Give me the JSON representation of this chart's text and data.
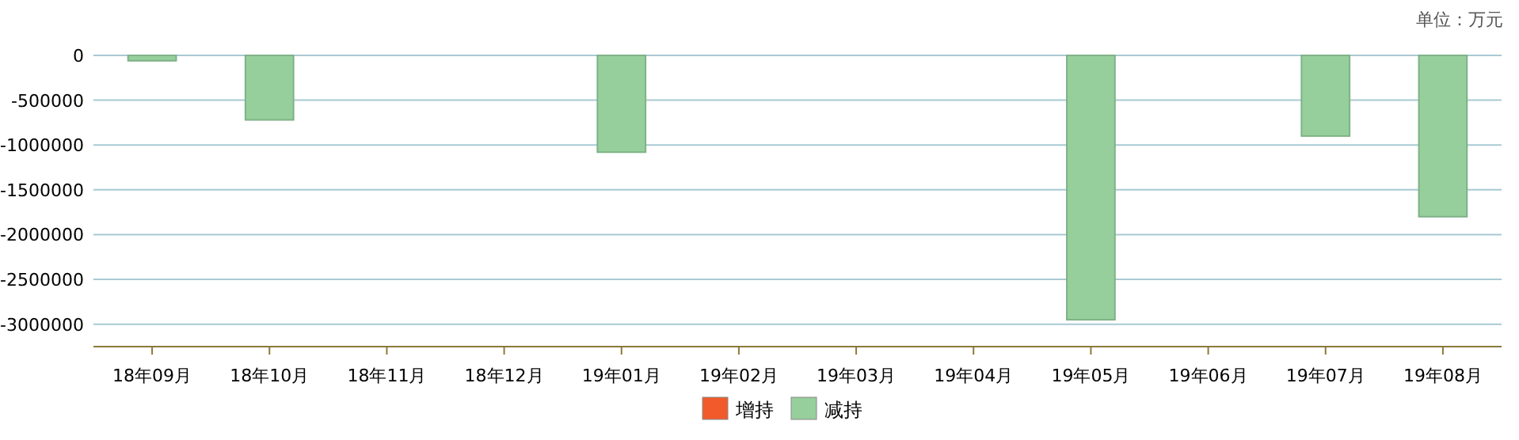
{
  "chart_data": {
    "type": "bar",
    "annotations": [
      "单位：万元"
    ],
    "categories": [
      "18年09月",
      "18年10月",
      "18年11月",
      "18年12月",
      "19年01月",
      "19年02月",
      "19年03月",
      "19年04月",
      "19年05月",
      "19年06月",
      "19年07月",
      "19年08月"
    ],
    "series": [
      {
        "name": "增持",
        "color": "#f15a2b",
        "values": [
          null,
          null,
          null,
          null,
          null,
          null,
          null,
          null,
          null,
          null,
          null,
          null
        ]
      },
      {
        "name": "减持",
        "color": "#96cf9b",
        "values": [
          -60000,
          -720000,
          null,
          null,
          -1080000,
          null,
          null,
          null,
          -2950000,
          null,
          -900000,
          -1800000
        ]
      }
    ],
    "ylim": [
      -3250000,
      0
    ],
    "yticks": [
      0,
      -500000,
      -1000000,
      -1500000,
      -2000000,
      -2500000,
      -3000000
    ],
    "grid": "y",
    "legend": "bottom"
  }
}
